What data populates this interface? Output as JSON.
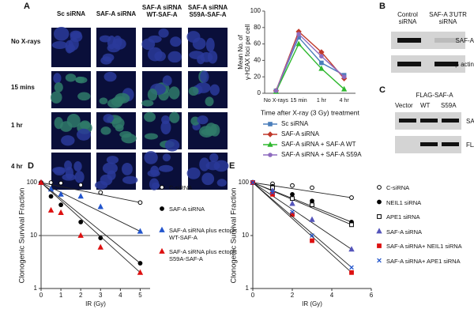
{
  "figure": {
    "panel_labels": [
      "A",
      "B",
      "C",
      "D",
      "E"
    ],
    "panel_a": {
      "columns": [
        "Sc siRNA",
        "SAF-A siRNA",
        "SAF-A siRNA WT-SAF-A",
        "SAF-A siRNA S59A-SAF-A"
      ],
      "rows": [
        "No X-rays",
        "15 mins",
        "1 hr",
        "4 hr"
      ]
    },
    "panel_b": {
      "columns": [
        "Control siRNA",
        "SAF-A 3'UTR siRNA"
      ],
      "bands": [
        "SAF-A",
        "β actin"
      ]
    },
    "panel_c": {
      "title": "FLAG-SAF-A",
      "columns": [
        "Vector",
        "WT",
        "S59A"
      ],
      "bands": [
        "SAF-A",
        "FLAG"
      ]
    }
  },
  "chart_data": [
    {
      "type": "line",
      "y_label": [
        "Mean No. of",
        "γ-H2AX foci per cell"
      ],
      "legend_title": "Time after X-ray (3 Gy) treatment",
      "categories": [
        "No X-rays",
        "15 min",
        "1 hr",
        "4 hr"
      ],
      "ylim": [
        0,
        100
      ],
      "yticks": [
        0,
        20,
        40,
        60,
        80,
        100
      ],
      "series": [
        {
          "name": "Sc siRNA",
          "color": "#4a7ebb",
          "marker": "square",
          "values": [
            3,
            68,
            37,
            22
          ]
        },
        {
          "name": "SAF-A siRNA",
          "color": "#c0392b",
          "marker": "diamond",
          "values": [
            3,
            75,
            50,
            18
          ]
        },
        {
          "name": "SAF-A siRNA + SAF-A WT",
          "color": "#2eb82e",
          "marker": "triangle",
          "values": [
            2,
            60,
            30,
            5
          ]
        },
        {
          "name": "SAF-A siRNA + SAF-A S59A",
          "color": "#8e6bbf",
          "marker": "circle",
          "values": [
            3,
            72,
            45,
            20
          ]
        }
      ]
    },
    {
      "type": "scatter",
      "x_label": "IR (Gy)",
      "y_label": "Clonogenic Survival Fraction",
      "log_y": true,
      "grid": true,
      "xlim": [
        0,
        5.5
      ],
      "xticks": [
        0,
        1,
        2,
        3,
        4,
        5
      ],
      "ylim": [
        1,
        100
      ],
      "yticks": [
        1,
        10,
        100
      ],
      "x": [
        0,
        0.5,
        1,
        2,
        3,
        5
      ],
      "series": [
        {
          "name": "C-siRNA",
          "color": "#000000",
          "marker": "circle",
          "filled": false,
          "values": [
            100,
            100,
            98,
            90,
            65,
            42
          ]
        },
        {
          "name": "SAF-A siRNA",
          "color": "#000000",
          "marker": "circle",
          "filled": true,
          "values": [
            100,
            55,
            38,
            18,
            9,
            3
          ]
        },
        {
          "name": "SAF-A siRNA plus ectopic WT-SAF-A",
          "color": "#2255cc",
          "marker": "triangle",
          "filled": true,
          "values": [
            100,
            75,
            60,
            55,
            35,
            12
          ]
        },
        {
          "name": "SAF-A siRNA plus ectopic S59A-SAF-A",
          "color": "#dd1111",
          "marker": "triangle",
          "filled": true,
          "values": [
            100,
            30,
            27,
            10,
            6,
            2
          ]
        }
      ]
    },
    {
      "type": "scatter",
      "x_label": "IR (Gy)",
      "y_label": "Clonogenic Survival Fraction",
      "log_y": true,
      "grid": false,
      "xlim": [
        0,
        6
      ],
      "xticks": [
        0,
        2,
        4,
        6
      ],
      "ylim": [
        1,
        100
      ],
      "yticks": [
        1,
        10,
        100
      ],
      "x": [
        0,
        1,
        2,
        3,
        5
      ],
      "series": [
        {
          "name": "C-siRNA",
          "color": "#000000",
          "marker": "circle",
          "filled": false,
          "values": [
            100,
            95,
            88,
            80,
            52
          ]
        },
        {
          "name": "NEIL1 siRNA",
          "color": "#000000",
          "marker": "circle",
          "filled": true,
          "values": [
            100,
            85,
            60,
            45,
            18
          ]
        },
        {
          "name": "APE1 siRNA",
          "color": "#000000",
          "marker": "square",
          "filled": false,
          "values": [
            100,
            80,
            50,
            38,
            16
          ]
        },
        {
          "name": "SAF-A siRNA",
          "color": "#5555bb",
          "marker": "triangle",
          "filled": true,
          "values": [
            100,
            70,
            40,
            20,
            5.5
          ]
        },
        {
          "name": "SAF-A siRNA+ NEIL1 siRNA",
          "color": "#dd1111",
          "marker": "square",
          "filled": true,
          "values": [
            100,
            60,
            25,
            8,
            2
          ]
        },
        {
          "name": "SAF-A siRNA+ APE1 siRNA",
          "color": "#2255cc",
          "marker": "x",
          "filled": false,
          "values": [
            100,
            65,
            28,
            10,
            2.5
          ]
        }
      ]
    }
  ]
}
